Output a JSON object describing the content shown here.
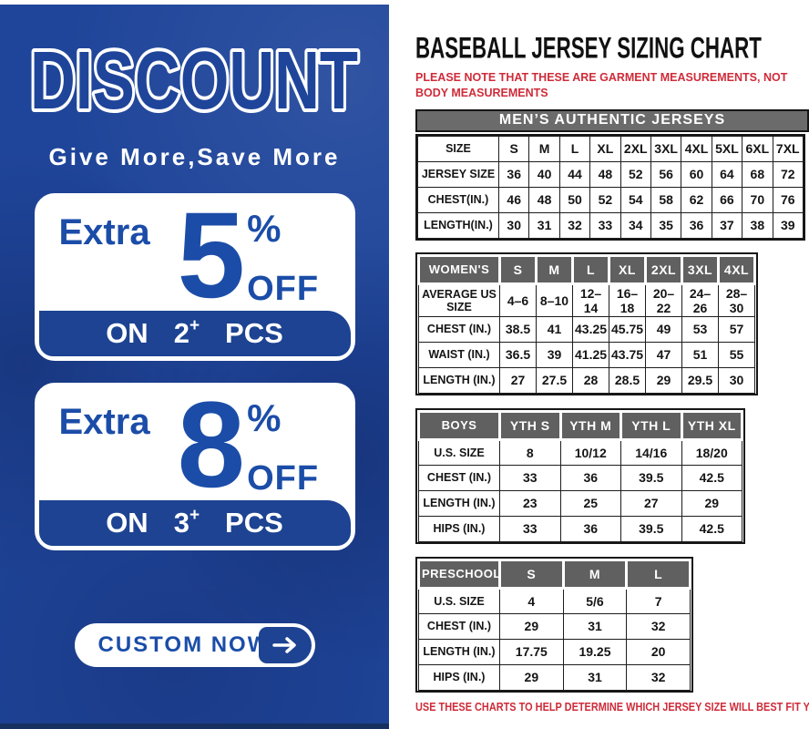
{
  "colors": {
    "panel_blue": "#1f459a",
    "accent_blue": "#1b4da8",
    "band_blue": "#1d4392",
    "banner_gray": "#6b6b6b",
    "header_gray": "#606060",
    "note_red": "#cf2b39",
    "table_border": "#161616"
  },
  "promo": {
    "title": "DISCOUNT",
    "tagline": "Give More,Save More",
    "offers": [
      {
        "prefix": "Extra",
        "percent": "5",
        "percent_sign": "%",
        "off_label": "OFF",
        "on_label": "ON",
        "qty": "2",
        "plus": "+",
        "pcs_label": "PCS"
      },
      {
        "prefix": "Extra",
        "percent": "8",
        "percent_sign": "%",
        "off_label": "OFF",
        "on_label": "ON",
        "qty": "3",
        "plus": "+",
        "pcs_label": "PCS"
      }
    ],
    "cta_label": "CUSTOM NOW"
  },
  "chart": {
    "title": "BASEBALL JERSEY SIZING CHART",
    "note_top": "PLEASE NOTE THAT THESE ARE GARMENT MEASUREMENTS, NOT BODY MEASUREMENTS",
    "note_bottom": "USE THESE CHARTS TO HELP DETERMINE WHICH JERSEY SIZE WILL BEST FIT YOU.",
    "tables": [
      {
        "id": "mens",
        "banner": "MEN’S AUTHENTIC JERSEYS",
        "rows": [
          [
            "SIZE",
            "S",
            "M",
            "L",
            "XL",
            "2XL",
            "3XL",
            "4XL",
            "5XL",
            "6XL",
            "7XL"
          ],
          [
            "JERSEY SIZE",
            "36",
            "40",
            "44",
            "48",
            "52",
            "56",
            "60",
            "64",
            "68",
            "72"
          ],
          [
            "CHEST(IN.)",
            "46",
            "48",
            "50",
            "52",
            "54",
            "58",
            "62",
            "66",
            "70",
            "76"
          ],
          [
            "LENGTH(IN.)",
            "30",
            "31",
            "32",
            "33",
            "34",
            "35",
            "36",
            "37",
            "38",
            "39"
          ]
        ]
      },
      {
        "id": "womens",
        "header_row": [
          "WOMEN'S",
          "S",
          "M",
          "L",
          "XL",
          "2XL",
          "3XL",
          "4XL"
        ],
        "rows": [
          [
            "AVERAGE US SIZE",
            "4–6",
            "8–10",
            "12–14",
            "16–18",
            "20–22",
            "24–26",
            "28–30"
          ],
          [
            "CHEST (IN.)",
            "38.5",
            "41",
            "43.25",
            "45.75",
            "49",
            "53",
            "57"
          ],
          [
            "WAIST (IN.)",
            "36.5",
            "39",
            "41.25",
            "43.75",
            "47",
            "51",
            "55"
          ],
          [
            "LENGTH (IN.)",
            "27",
            "27.5",
            "28",
            "28.5",
            "29",
            "29.5",
            "30"
          ]
        ]
      },
      {
        "id": "boys",
        "header_row": [
          "BOYS",
          "YTH S",
          "YTH M",
          "YTH L",
          "YTH XL"
        ],
        "rows": [
          [
            "U.S. SIZE",
            "8",
            "10/12",
            "14/16",
            "18/20"
          ],
          [
            "CHEST (IN.)",
            "33",
            "36",
            "39.5",
            "42.5"
          ],
          [
            "LENGTH (IN.)",
            "23",
            "25",
            "27",
            "29"
          ],
          [
            "HIPS (IN.)",
            "33",
            "36",
            "39.5",
            "42.5"
          ]
        ]
      },
      {
        "id": "preschool",
        "header_row": [
          "PRESCHOOL",
          "S",
          "M",
          "L"
        ],
        "rows": [
          [
            "U.S. SIZE",
            "4",
            "5/6",
            "7"
          ],
          [
            "CHEST (IN.)",
            "29",
            "31",
            "32"
          ],
          [
            "LENGTH (IN.)",
            "17.75",
            "19.25",
            "20"
          ],
          [
            "HIPS (IN.)",
            "29",
            "31",
            "32"
          ]
        ]
      }
    ]
  }
}
